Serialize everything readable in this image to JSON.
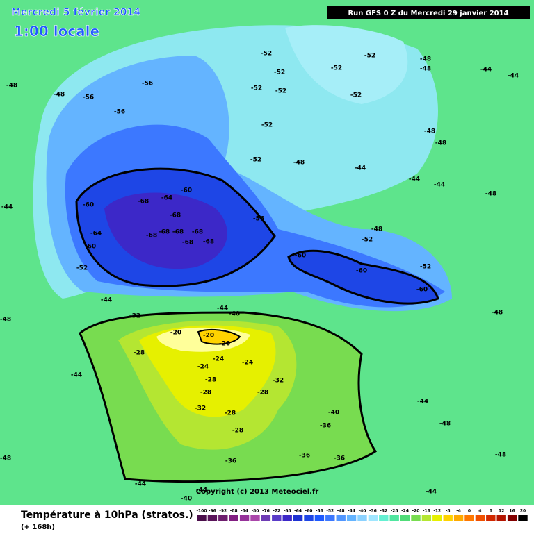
{
  "header": {
    "title": "Mercredi 5 février 2014",
    "time": "1:00 locale",
    "run": "Run GFS 0 Z du Mercredi 29 janvier 2014"
  },
  "map": {
    "labels": [
      -48,
      -48,
      -56,
      -56,
      -56,
      -52,
      -52,
      -52,
      -52,
      -52,
      -52,
      -52,
      -48,
      -48,
      -44,
      -44,
      -48,
      -48,
      -52,
      -52,
      -48,
      -44,
      -44,
      -44,
      -48,
      -60,
      -68,
      -64,
      -60,
      -68,
      -68,
      -68,
      -68,
      -68,
      -68,
      -68,
      -64,
      -60,
      -56,
      -52,
      -48,
      -60,
      -60,
      -60,
      -52,
      -52,
      -44,
      -44,
      -40,
      -32,
      -20,
      -20,
      -20,
      -28,
      -24,
      -24,
      -24,
      -28,
      -32,
      -28,
      -28,
      -32,
      -28,
      -28,
      -36,
      -40,
      -36,
      -36,
      -36,
      -44,
      -44,
      -48,
      -48,
      -44,
      -44,
      -40,
      -44,
      -48,
      -48,
      -44,
      -48
    ],
    "copyright": "Copyright (c) 2013 Meteociel.fr"
  },
  "legend": {
    "title": "Température à 10hPa (stratos.)",
    "lead": "(+ 168h)",
    "ticks": [
      -100,
      -96,
      -92,
      -88,
      -84,
      -80,
      -76,
      -72,
      -68,
      -64,
      -60,
      -56,
      -52,
      -48,
      -44,
      -40,
      -36,
      -32,
      -28,
      -24,
      -20,
      -16,
      -12,
      -8,
      -4,
      0,
      4,
      8,
      12,
      16,
      20
    ],
    "colors": [
      "#4b0f4b",
      "#5a145a",
      "#6e1e6e",
      "#821e82",
      "#96329a",
      "#aa46aa",
      "#6e3cb4",
      "#5a3cc8",
      "#3c28c8",
      "#1e32d2",
      "#1e46e6",
      "#1e5aff",
      "#3c78ff",
      "#5096ff",
      "#64b4ff",
      "#8cd2ff",
      "#a0e6ff",
      "#64f0d2",
      "#50e6a0",
      "#50dc78",
      "#78dc50",
      "#b4e632",
      "#e6f000",
      "#ffd200",
      "#ffaa00",
      "#ff7800",
      "#f05000",
      "#d22800",
      "#b41400",
      "#820000",
      "#000000"
    ]
  }
}
